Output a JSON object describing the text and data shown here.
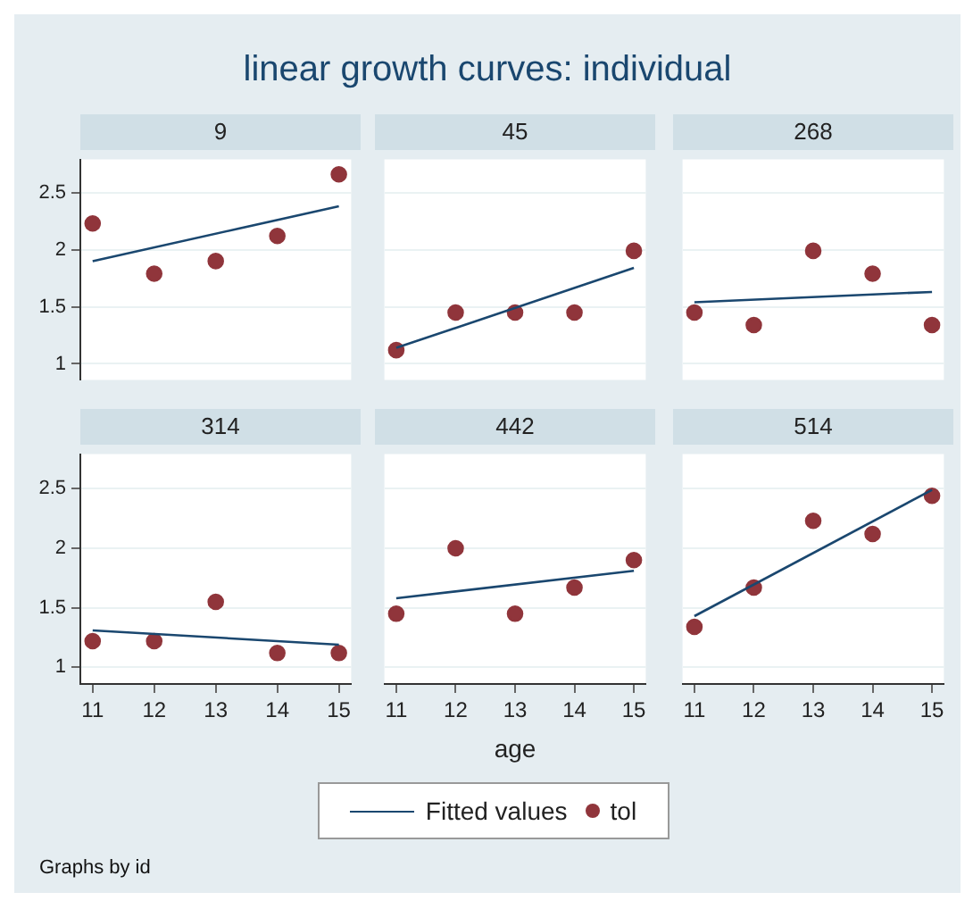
{
  "chart_data": [
    {
      "type": "scatter",
      "title": "9",
      "xlim": [
        10.8,
        15.2
      ],
      "xticks": [
        11,
        12,
        13,
        14,
        15
      ],
      "ylim": [
        0.86,
        2.79
      ],
      "yticks": [
        1,
        1.5,
        2,
        2.5
      ],
      "grid": "y",
      "tick_labels": "y",
      "series": [
        {
          "type": "line",
          "x": [
            11,
            15
          ],
          "values": [
            1.9,
            2.38
          ],
          "color": "#1a476f",
          "marker": "none"
        },
        {
          "type": "scatter",
          "x": [
            11,
            12,
            13,
            14,
            15
          ],
          "values": [
            2.23,
            1.79,
            1.9,
            2.12,
            2.66
          ],
          "color": "#90353b",
          "marker": "circle"
        }
      ]
    },
    {
      "type": "scatter",
      "title": "45",
      "xlim": [
        10.8,
        15.2
      ],
      "xticks": [
        11,
        12,
        13,
        14,
        15
      ],
      "ylim": [
        0.86,
        2.79
      ],
      "yticks": [
        1,
        1.5,
        2,
        2.5
      ],
      "grid": "y",
      "tick_labels": false,
      "series": [
        {
          "type": "line",
          "x": [
            11,
            15
          ],
          "values": [
            1.14,
            1.84
          ],
          "color": "#1a476f",
          "marker": "none"
        },
        {
          "type": "scatter",
          "x": [
            11,
            12,
            13,
            14,
            15
          ],
          "values": [
            1.12,
            1.45,
            1.45,
            1.45,
            1.99
          ],
          "color": "#90353b",
          "marker": "circle"
        }
      ]
    },
    {
      "type": "scatter",
      "title": "268",
      "xlim": [
        10.8,
        15.2
      ],
      "xticks": [
        11,
        12,
        13,
        14,
        15
      ],
      "ylim": [
        0.86,
        2.79
      ],
      "yticks": [
        1,
        1.5,
        2,
        2.5
      ],
      "grid": "y",
      "tick_labels": false,
      "series": [
        {
          "type": "line",
          "x": [
            11,
            15
          ],
          "values": [
            1.54,
            1.63
          ],
          "color": "#1a476f",
          "marker": "none"
        },
        {
          "type": "scatter",
          "x": [
            11,
            12,
            13,
            14,
            15
          ],
          "values": [
            1.45,
            1.34,
            1.99,
            1.79,
            1.34
          ],
          "color": "#90353b",
          "marker": "circle"
        }
      ]
    },
    {
      "type": "scatter",
      "title": "314",
      "xlim": [
        10.8,
        15.2
      ],
      "xticks": [
        11,
        12,
        13,
        14,
        15
      ],
      "ylim": [
        0.86,
        2.79
      ],
      "yticks": [
        1,
        1.5,
        2,
        2.5
      ],
      "grid": "y",
      "series": [
        {
          "type": "line",
          "x": [
            11,
            15
          ],
          "values": [
            1.31,
            1.19
          ],
          "color": "#1a476f",
          "marker": "none"
        },
        {
          "type": "scatter",
          "x": [
            11,
            12,
            13,
            14,
            15
          ],
          "values": [
            1.22,
            1.22,
            1.55,
            1.12,
            1.12
          ],
          "color": "#90353b",
          "marker": "circle"
        }
      ]
    },
    {
      "type": "scatter",
      "title": "442",
      "xlabel": "age",
      "legend": "bottom",
      "xlim": [
        10.8,
        15.2
      ],
      "xticks": [
        11,
        12,
        13,
        14,
        15
      ],
      "ylim": [
        0.86,
        2.79
      ],
      "yticks": [
        1,
        1.5,
        2,
        2.5
      ],
      "grid": "y",
      "tick_labels": "x",
      "series": [
        {
          "type": "line",
          "name": "Fitted values",
          "x": [
            11,
            15
          ],
          "values": [
            1.58,
            1.81
          ],
          "color": "#1a476f",
          "marker": "none"
        },
        {
          "type": "scatter",
          "name": "tol",
          "x": [
            11,
            12,
            13,
            14,
            15
          ],
          "values": [
            1.45,
            2.0,
            1.45,
            1.67,
            1.9
          ],
          "color": "#90353b",
          "marker": "circle"
        }
      ]
    },
    {
      "type": "scatter",
      "title": "514",
      "xlim": [
        10.8,
        15.2
      ],
      "xticks": [
        11,
        12,
        13,
        14,
        15
      ],
      "ylim": [
        0.86,
        2.79
      ],
      "yticks": [
        1,
        1.5,
        2,
        2.5
      ],
      "grid": "y",
      "tick_labels": "x",
      "series": [
        {
          "type": "line",
          "x": [
            11,
            15
          ],
          "values": [
            1.43,
            2.49
          ],
          "color": "#1a476f",
          "marker": "none"
        },
        {
          "type": "scatter",
          "x": [
            11,
            12,
            13,
            14,
            15
          ],
          "values": [
            1.34,
            1.67,
            2.23,
            2.12,
            2.44
          ],
          "color": "#90353b",
          "marker": "circle"
        }
      ]
    },
    {
      "type": "other",
      "title": "linear growth curves: individual",
      "annotations": [
        "Graphs by id"
      ]
    }
  ]
}
